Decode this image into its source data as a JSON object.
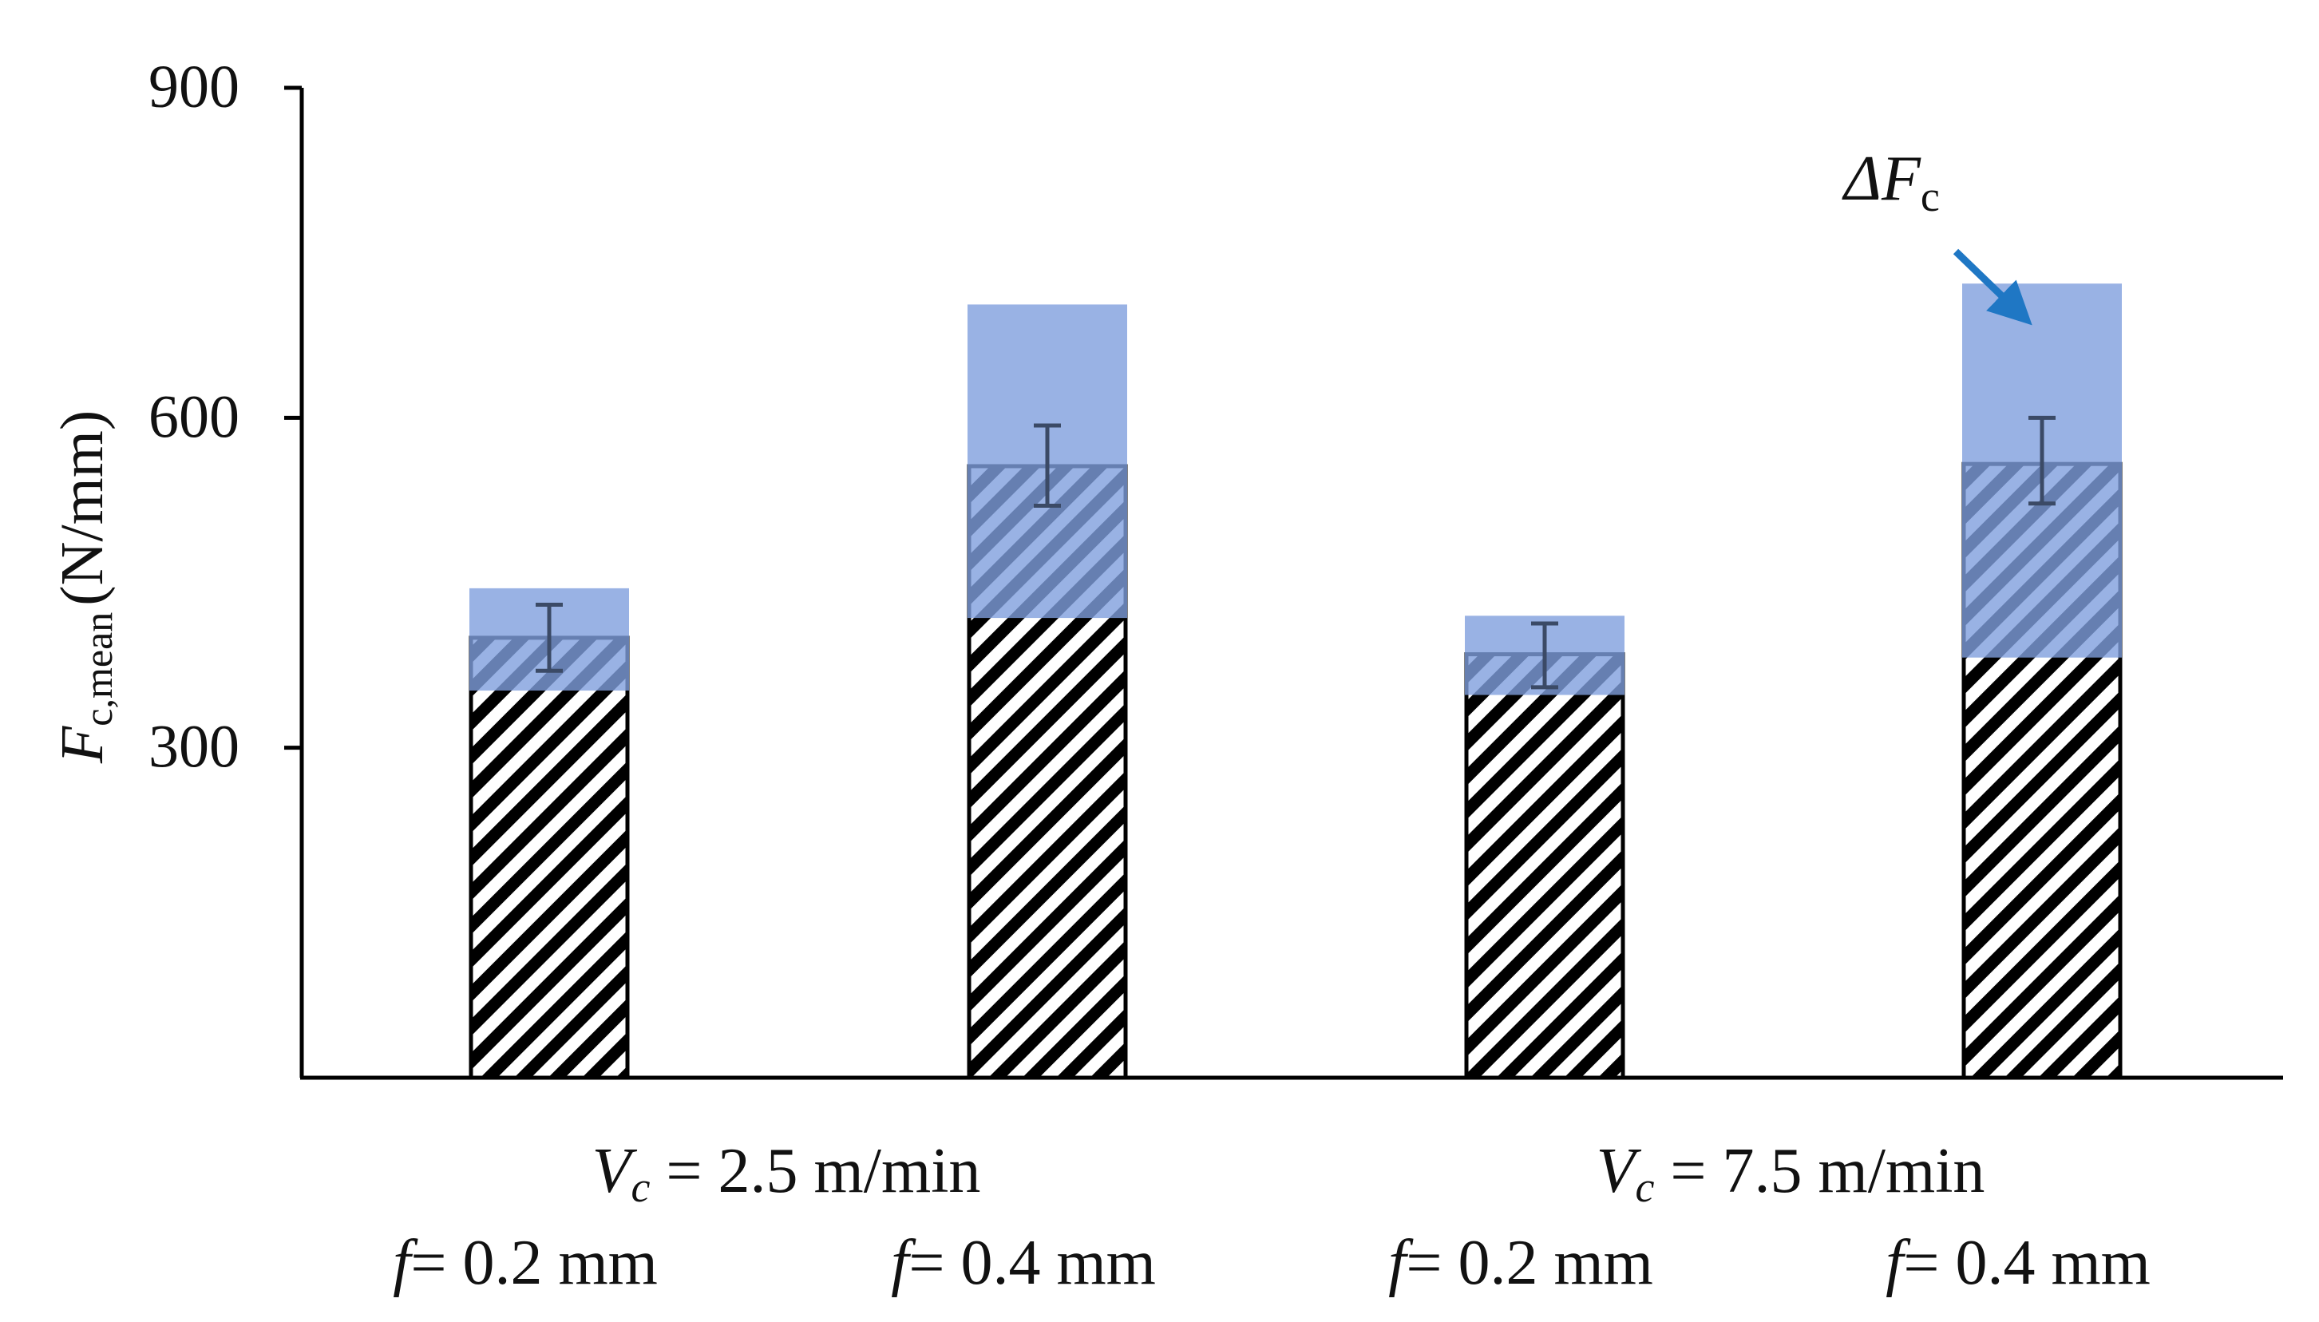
{
  "chart_data": {
    "type": "bar",
    "title": "",
    "xlabel": "",
    "ylabel": {
      "symbol": "F",
      "subscript": "c,mean",
      "unit": "(N/mm)"
    },
    "ylim": [
      0,
      900
    ],
    "yticks": [
      "300",
      "600",
      "900"
    ],
    "grid": false,
    "legend": "none",
    "groups": [
      {
        "symbol": "V",
        "subscript": "c",
        "value_text": " = 2.5 m/min"
      },
      {
        "symbol": "V",
        "subscript": "c",
        "value_text": " = 7.5 m/min"
      }
    ],
    "categories": [
      {
        "group": 0,
        "symbol": "f",
        "value_text": "= 0.2 mm"
      },
      {
        "group": 0,
        "symbol": "f",
        "value_text": "= 0.4 mm"
      },
      {
        "group": 1,
        "symbol": "f",
        "value_text": "= 0.2 mm"
      },
      {
        "group": 1,
        "symbol": "f",
        "value_text": "= 0.4 mm"
      }
    ],
    "series": [
      {
        "style": "hatched",
        "values": [
          400,
          556,
          385,
          558
        ],
        "error_low": [
          370,
          520,
          355,
          522
        ],
        "error_high": [
          430,
          593,
          413,
          600
        ]
      },
      {
        "style": "shaded",
        "ranges": [
          [
            352,
            445
          ],
          [
            418,
            703
          ],
          [
            348,
            420
          ],
          [
            382,
            722
          ]
        ]
      }
    ],
    "annotation": {
      "symbol": "ΔF",
      "subscript": "c",
      "target_category": 3,
      "arrow_color": "#1f77c4"
    },
    "colors": {
      "delta_fill": "#7f9fdd",
      "hatch": "#000000",
      "axis": "#000000",
      "error_bar": "#3b4a66"
    }
  }
}
